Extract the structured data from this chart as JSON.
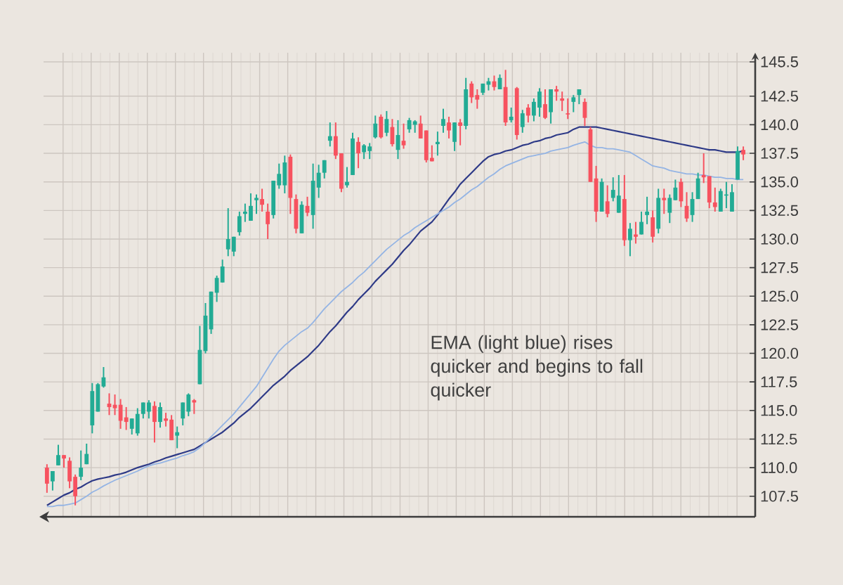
{
  "chart_data": {
    "type": "candlestick",
    "categories": [
      null,
      null,
      null,
      null,
      null,
      null,
      null,
      null,
      null,
      null,
      null,
      null,
      null,
      null,
      null,
      null,
      null,
      null,
      null,
      null,
      null,
      null,
      null,
      null,
      null,
      null,
      null,
      null,
      null,
      null,
      null,
      null,
      null,
      null,
      null,
      null,
      null,
      null,
      null,
      null,
      null,
      null,
      null,
      null,
      null,
      null,
      null,
      null,
      null,
      null,
      null,
      null,
      null,
      null,
      null,
      null,
      null,
      null,
      null,
      null,
      null,
      null,
      null,
      null,
      null,
      null,
      null,
      null,
      null,
      null,
      null,
      null,
      null,
      null,
      null,
      null,
      null,
      null,
      null,
      null,
      null,
      null,
      null,
      null,
      null,
      null,
      null,
      null,
      null,
      null,
      null,
      null,
      null,
      null,
      null,
      null,
      null,
      null,
      null,
      null,
      null,
      null,
      null,
      null,
      null,
      null,
      null,
      null,
      null,
      null,
      null,
      null,
      null,
      null,
      null,
      null,
      null,
      null,
      null,
      null,
      null,
      null,
      null,
      null
    ],
    "ohlc": [
      [
        110.0,
        110.3,
        107.8,
        108.6
      ],
      [
        108.8,
        109.7,
        108.0,
        109.7
      ],
      [
        110.2,
        112.0,
        110.2,
        111.1
      ],
      [
        111.1,
        111.1,
        110.0,
        110.8
      ],
      [
        110.6,
        110.9,
        108.2,
        108.8
      ],
      [
        109.2,
        109.4,
        106.7,
        107.5
      ],
      [
        109.2,
        111.5,
        108.9,
        110.0
      ],
      [
        110.3,
        112.1,
        110.3,
        111.2
      ],
      [
        113.7,
        117.4,
        113.0,
        116.7
      ],
      [
        114.9,
        117.4,
        114.9,
        117.3
      ],
      [
        117.1,
        118.8,
        117.0,
        117.9
      ],
      [
        115.6,
        116.5,
        114.6,
        115.3
      ],
      [
        115.5,
        116.4,
        114.6,
        115.2
      ],
      [
        115.5,
        116.0,
        113.4,
        114.1
      ],
      [
        114.4,
        115.3,
        113.3,
        114.0
      ],
      [
        113.4,
        114.3,
        112.9,
        114.3
      ],
      [
        113.0,
        115.2,
        112.8,
        114.7
      ],
      [
        114.7,
        115.7,
        114.3,
        115.7
      ],
      [
        114.9,
        115.9,
        114.3,
        115.7
      ],
      [
        115.4,
        115.8,
        112.2,
        114.0
      ],
      [
        114.0,
        115.7,
        113.5,
        115.3
      ],
      [
        114.3,
        114.8,
        113.6,
        114.1
      ],
      [
        114.2,
        114.6,
        112.4,
        112.4
      ],
      [
        112.8,
        113.6,
        111.7,
        113.1
      ],
      [
        114.3,
        115.7,
        113.7,
        115.7
      ],
      [
        114.9,
        116.5,
        114.5,
        116.4
      ],
      [
        115.9,
        116.0,
        114.7,
        115.7
      ],
      [
        117.3,
        122.4,
        117.3,
        120.3
      ],
      [
        120.2,
        124.4,
        120.0,
        123.3
      ],
      [
        122.1,
        125.4,
        121.7,
        125.4
      ],
      [
        125.3,
        126.8,
        124.5,
        126.6
      ],
      [
        126.2,
        128.2,
        126.2,
        127.6
      ],
      [
        129.1,
        132.7,
        128.5,
        130.0
      ],
      [
        128.9,
        130.2,
        128.5,
        130.2
      ],
      [
        130.6,
        132.4,
        130.3,
        132.0
      ],
      [
        132.2,
        133.1,
        131.5,
        132.4
      ],
      [
        131.6,
        134.0,
        131.6,
        132.9
      ],
      [
        133.4,
        133.9,
        132.2,
        133.6
      ],
      [
        133.5,
        134.4,
        132.4,
        133.0
      ],
      [
        132.4,
        133.1,
        130.0,
        131.3
      ],
      [
        132.1,
        135.1,
        131.8,
        135.1
      ],
      [
        134.7,
        136.6,
        134.4,
        135.7
      ],
      [
        134.7,
        137.3,
        134.0,
        136.7
      ],
      [
        137.2,
        137.4,
        132.2,
        133.6
      ],
      [
        133.5,
        133.9,
        130.5,
        130.9
      ],
      [
        130.5,
        133.3,
        130.5,
        133.0
      ],
      [
        132.9,
        133.7,
        132.0,
        132.3
      ],
      [
        132.1,
        136.6,
        130.9,
        135.1
      ],
      [
        134.5,
        136.5,
        133.6,
        135.8
      ],
      [
        135.8,
        136.9,
        135.3,
        136.9
      ],
      [
        138.6,
        140.2,
        138.1,
        139.0
      ],
      [
        139.0,
        140.2,
        137.0,
        137.3
      ],
      [
        137.5,
        137.5,
        134.1,
        134.4
      ],
      [
        134.7,
        136.3,
        134.5,
        135.0
      ],
      [
        135.6,
        139.3,
        135.6,
        138.8
      ],
      [
        138.5,
        138.9,
        136.2,
        137.5
      ],
      [
        137.6,
        138.3,
        137.0,
        138.2
      ],
      [
        137.7,
        138.4,
        137.0,
        138.1
      ],
      [
        138.9,
        140.8,
        138.8,
        140.1
      ],
      [
        140.7,
        140.9,
        138.8,
        138.9
      ],
      [
        139.3,
        141.2,
        139.0,
        140.5
      ],
      [
        139.8,
        140.5,
        138.1,
        138.3
      ],
      [
        137.8,
        140.4,
        137.0,
        139.1
      ],
      [
        138.6,
        140.1,
        137.9,
        138.2
      ],
      [
        139.6,
        140.6,
        139.3,
        140.4
      ],
      [
        140.0,
        140.4,
        139.3,
        140.3
      ],
      [
        140.1,
        140.8,
        138.8,
        138.8
      ],
      [
        139.5,
        139.5,
        136.7,
        136.9
      ],
      [
        137.1,
        138.2,
        136.8,
        136.8
      ],
      [
        138.3,
        139.4,
        137.3,
        138.5
      ],
      [
        139.9,
        141.4,
        139.3,
        140.5
      ],
      [
        140.2,
        140.7,
        138.8,
        139.5
      ],
      [
        138.5,
        140.2,
        137.7,
        140.2
      ],
      [
        140.2,
        140.5,
        138.2,
        139.9
      ],
      [
        139.9,
        144.1,
        139.6,
        143.1
      ],
      [
        143.6,
        143.8,
        141.9,
        142.4
      ],
      [
        142.6,
        143.1,
        141.4,
        142.2
      ],
      [
        142.8,
        143.6,
        142.6,
        143.6
      ],
      [
        143.5,
        144.1,
        143.0,
        143.8
      ],
      [
        143.8,
        144.3,
        143.0,
        143.3
      ],
      [
        143.1,
        144.4,
        143.1,
        144.1
      ],
      [
        143.3,
        144.8,
        139.9,
        140.2
      ],
      [
        140.4,
        141.5,
        140.2,
        140.7
      ],
      [
        143.2,
        143.3,
        138.7,
        139.1
      ],
      [
        139.8,
        141.3,
        139.3,
        141.0
      ],
      [
        141.5,
        141.8,
        140.2,
        140.8
      ],
      [
        140.8,
        142.3,
        140.3,
        142.0
      ],
      [
        141.5,
        143.2,
        140.7,
        142.9
      ],
      [
        141.8,
        143.1,
        140.5,
        140.6
      ],
      [
        141.1,
        143.1,
        140.1,
        143.1
      ],
      [
        143.1,
        143.4,
        142.1,
        142.9
      ],
      [
        142.3,
        142.9,
        141.2,
        142.1
      ],
      [
        141.0,
        142.3,
        140.5,
        140.9
      ],
      [
        142.0,
        142.6,
        141.1,
        142.4
      ],
      [
        142.6,
        143.1,
        141.8,
        143.1
      ],
      [
        142.0,
        142.3,
        139.9,
        140.6
      ],
      [
        139.6,
        139.8,
        135.0,
        135.0
      ],
      [
        135.3,
        136.4,
        131.5,
        132.4
      ],
      [
        132.4,
        135.3,
        132.4,
        135.0
      ],
      [
        133.3,
        134.7,
        131.9,
        132.2
      ],
      [
        133.6,
        135.4,
        133.3,
        134.3
      ],
      [
        132.3,
        135.6,
        132.3,
        133.8
      ],
      [
        133.5,
        135.6,
        129.4,
        129.9
      ],
      [
        129.9,
        131.4,
        128.5,
        130.9
      ],
      [
        130.4,
        131.5,
        129.6,
        130.2
      ],
      [
        130.4,
        132.4,
        130.4,
        131.5
      ],
      [
        132.1,
        133.7,
        131.3,
        132.4
      ],
      [
        131.9,
        132.5,
        129.7,
        130.2
      ],
      [
        130.9,
        134.4,
        130.5,
        133.6
      ],
      [
        133.6,
        134.4,
        132.2,
        133.4
      ],
      [
        132.3,
        133.9,
        131.4,
        133.6
      ],
      [
        133.4,
        135.2,
        133.4,
        134.5
      ],
      [
        135.0,
        135.3,
        132.8,
        133.3
      ],
      [
        132.9,
        134.1,
        131.5,
        131.8
      ],
      [
        132.1,
        134.1,
        131.5,
        133.5
      ],
      [
        133.5,
        135.8,
        133.5,
        135.3
      ],
      [
        135.6,
        137.5,
        134.9,
        135.4
      ],
      [
        135.5,
        135.5,
        132.7,
        133.2
      ],
      [
        133.2,
        134.5,
        132.4,
        132.8
      ],
      [
        132.4,
        134.4,
        132.4,
        134.2
      ],
      [
        133.8,
        135.0,
        132.7,
        133.9
      ],
      [
        132.4,
        134.8,
        132.4,
        134.1
      ],
      [
        135.2,
        138.1,
        135.2,
        137.7
      ],
      [
        137.8,
        138.1,
        136.9,
        137.4
      ]
    ],
    "colors": [
      "#f7525f",
      "#22ab94",
      "#22ab94",
      "#f7525f",
      "#f7525f",
      "#f7525f",
      "#22ab94",
      "#22ab94",
      "#22ab94",
      "#22ab94",
      "#22ab94",
      "#f7525f",
      "#f7525f",
      "#f7525f",
      "#f7525f",
      "#22ab94",
      "#22ab94",
      "#22ab94",
      "#22ab94",
      "#f7525f",
      "#22ab94",
      "#f7525f",
      "#f7525f",
      "#22ab94",
      "#22ab94",
      "#22ab94",
      "#f7525f",
      "#22ab94",
      "#22ab94",
      "#22ab94",
      "#22ab94",
      "#22ab94",
      "#22ab94",
      "#22ab94",
      "#22ab94",
      "#22ab94",
      "#22ab94",
      "#22ab94",
      "#f7525f",
      "#f7525f",
      "#22ab94",
      "#22ab94",
      "#22ab94",
      "#f7525f",
      "#f7525f",
      "#22ab94",
      "#f7525f",
      "#22ab94",
      "#22ab94",
      "#22ab94",
      "#22ab94",
      "#f7525f",
      "#f7525f",
      "#22ab94",
      "#22ab94",
      "#f7525f",
      "#22ab94",
      "#22ab94",
      "#22ab94",
      "#f7525f",
      "#22ab94",
      "#f7525f",
      "#22ab94",
      "#f7525f",
      "#22ab94",
      "#22ab94",
      "#f7525f",
      "#f7525f",
      "#f7525f",
      "#22ab94",
      "#22ab94",
      "#f7525f",
      "#22ab94",
      "#f7525f",
      "#22ab94",
      "#f7525f",
      "#f7525f",
      "#22ab94",
      "#22ab94",
      "#f7525f",
      "#22ab94",
      "#f7525f",
      "#22ab94",
      "#f7525f",
      "#22ab94",
      "#f7525f",
      "#22ab94",
      "#22ab94",
      "#f7525f",
      "#22ab94",
      "#f7525f",
      "#f7525f",
      "#f7525f",
      "#22ab94",
      "#22ab94",
      "#f7525f",
      "#f7525f",
      "#f7525f",
      "#22ab94",
      "#f7525f",
      "#22ab94",
      "#22ab94",
      "#f7525f",
      "#22ab94",
      "#f7525f",
      "#22ab94",
      "#22ab94",
      "#f7525f",
      "#22ab94",
      "#f7525f",
      "#22ab94",
      "#22ab94",
      "#f7525f",
      "#f7525f",
      "#22ab94",
      "#22ab94",
      "#f7525f",
      "#f7525f",
      "#f7525f",
      "#22ab94",
      "#22ab94",
      "#22ab94",
      "#22ab94",
      "#f7525f"
    ],
    "series": [
      {
        "type": "line",
        "color": "#2e3a87",
        "values": [
          106.7,
          107.0,
          107.3,
          107.6,
          107.8,
          108.1,
          108.3,
          108.6,
          108.85,
          109.0,
          109.1,
          109.2,
          109.35,
          109.45,
          109.6,
          109.8,
          110.0,
          110.15,
          110.3,
          110.5,
          110.65,
          110.85,
          111.0,
          111.15,
          111.3,
          111.45,
          111.6,
          111.9,
          112.2,
          112.5,
          112.8,
          113.1,
          113.5,
          113.9,
          114.4,
          114.8,
          115.2,
          115.7,
          116.2,
          116.7,
          117.2,
          117.6,
          118.0,
          118.5,
          118.9,
          119.3,
          119.7,
          120.2,
          120.7,
          121.3,
          121.9,
          122.4,
          123.0,
          123.6,
          124.1,
          124.7,
          125.2,
          125.7,
          126.3,
          126.8,
          127.3,
          127.8,
          128.4,
          129.0,
          129.5,
          130.1,
          130.7,
          131.1,
          131.5,
          132.1,
          132.8,
          133.5,
          134.1,
          134.8,
          135.3,
          135.8,
          136.3,
          136.8,
          137.2,
          137.4,
          137.5,
          137.7,
          137.8,
          138.0,
          138.2,
          138.3,
          138.5,
          138.6,
          138.8,
          138.9,
          139.1,
          139.2,
          139.3,
          139.6,
          139.8,
          139.8,
          139.8,
          139.8,
          139.7,
          139.6,
          139.5,
          139.4,
          139.3,
          139.2,
          139.1,
          139.0,
          138.9,
          138.8,
          138.7,
          138.6,
          138.5,
          138.4,
          138.3,
          138.2,
          138.1,
          138.0,
          137.9,
          137.8,
          137.8,
          137.7,
          137.6,
          137.6,
          137.6,
          137.7
        ]
      },
      {
        "type": "line",
        "color": "#94b4e4",
        "values": [
          106.6,
          106.6,
          106.7,
          106.7,
          106.8,
          106.9,
          107.2,
          107.5,
          107.85,
          108.1,
          108.4,
          108.65,
          108.9,
          109.1,
          109.3,
          109.5,
          109.7,
          109.95,
          110.15,
          110.3,
          110.4,
          110.55,
          110.7,
          110.85,
          111.05,
          111.2,
          111.4,
          111.75,
          112.2,
          112.7,
          113.2,
          113.7,
          114.2,
          114.7,
          115.3,
          115.9,
          116.5,
          117.1,
          117.9,
          118.7,
          119.5,
          120.2,
          120.7,
          121.1,
          121.5,
          121.9,
          122.2,
          122.7,
          123.3,
          123.9,
          124.4,
          124.9,
          125.4,
          125.8,
          126.2,
          126.7,
          127.1,
          127.6,
          128.1,
          128.6,
          129.1,
          129.5,
          129.9,
          130.3,
          130.6,
          131.0,
          131.3,
          131.6,
          131.9,
          132.2,
          132.5,
          132.8,
          133.2,
          133.5,
          133.9,
          134.3,
          134.6,
          135.0,
          135.4,
          135.7,
          136.1,
          136.4,
          136.6,
          136.8,
          137.0,
          137.2,
          137.3,
          137.4,
          137.5,
          137.7,
          137.8,
          137.9,
          138.0,
          138.2,
          138.35,
          138.5,
          138.2,
          138.0,
          138.0,
          137.9,
          137.9,
          137.8,
          137.7,
          137.6,
          137.3,
          137.0,
          136.7,
          136.4,
          136.3,
          136.2,
          136.0,
          135.9,
          135.8,
          135.7,
          135.7,
          135.6,
          135.6,
          135.5,
          135.4,
          135.4,
          135.3,
          135.3,
          135.2,
          135.2
        ]
      }
    ],
    "ylim": [
      105.7,
      146.3
    ],
    "yticks": [
      107.5,
      {
        "value": 110,
        "label": "110.0"
      },
      112.5,
      {
        "value": 115,
        "label": "115.0"
      },
      117.5,
      {
        "value": 120,
        "label": "120.0"
      },
      122.5,
      {
        "value": 125,
        "label": "125.0"
      },
      127.5,
      {
        "value": 130,
        "label": "130.0"
      },
      132.5,
      {
        "value": 135,
        "label": "135.0"
      },
      137.5,
      {
        "value": 140,
        "label": "140.0"
      },
      142.5,
      145.5
    ],
    "grid": true,
    "tick_labels": "y",
    "annotations": [
      "EMA (light blue) rises quicker and begins to fall quicker"
    ]
  }
}
